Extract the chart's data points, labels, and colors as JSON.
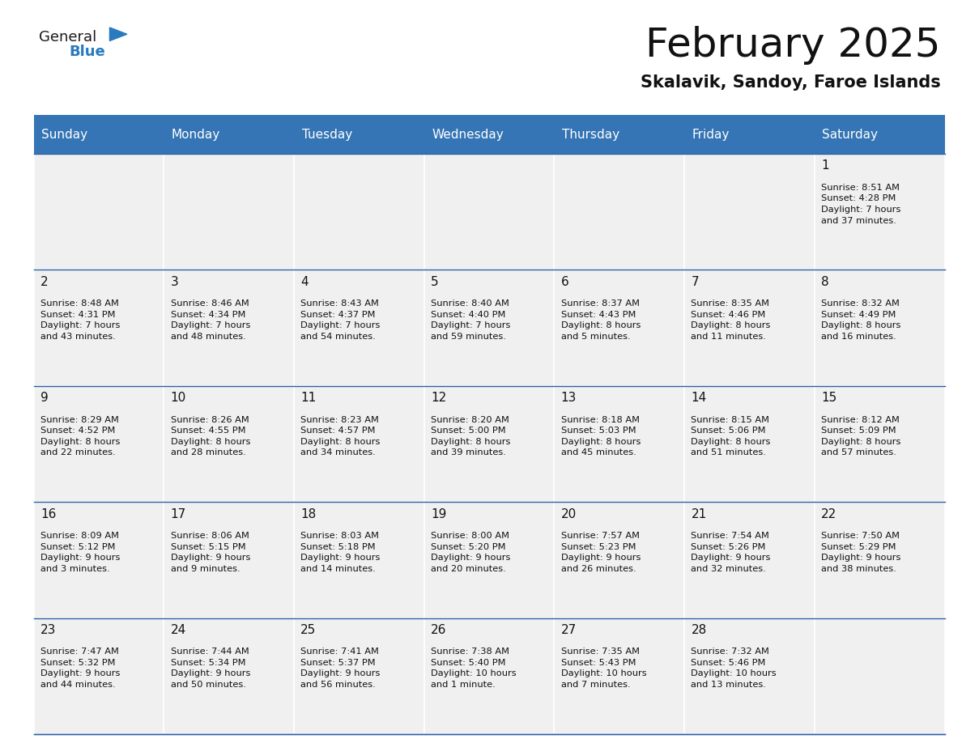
{
  "title": "February 2025",
  "subtitle": "Skalavik, Sandoy, Faroe Islands",
  "header_color": "#3575b5",
  "header_text_color": "#ffffff",
  "cell_bg_color": "#f0f0f0",
  "border_color": "#2a5fa5",
  "cell_border_color": "#ffffff",
  "days_of_week": [
    "Sunday",
    "Monday",
    "Tuesday",
    "Wednesday",
    "Thursday",
    "Friday",
    "Saturday"
  ],
  "title_fontsize": 36,
  "subtitle_fontsize": 15,
  "day_header_fontsize": 11,
  "day_num_fontsize": 11,
  "cell_text_fontsize": 8.2,
  "calendar": [
    [
      null,
      null,
      null,
      null,
      null,
      null,
      {
        "day": "1",
        "sunrise": "8:51 AM",
        "sunset": "4:28 PM",
        "daylight": "7 hours",
        "daylight2": "and 37 minutes."
      }
    ],
    [
      {
        "day": "2",
        "sunrise": "8:48 AM",
        "sunset": "4:31 PM",
        "daylight": "7 hours",
        "daylight2": "and 43 minutes."
      },
      {
        "day": "3",
        "sunrise": "8:46 AM",
        "sunset": "4:34 PM",
        "daylight": "7 hours",
        "daylight2": "and 48 minutes."
      },
      {
        "day": "4",
        "sunrise": "8:43 AM",
        "sunset": "4:37 PM",
        "daylight": "7 hours",
        "daylight2": "and 54 minutes."
      },
      {
        "day": "5",
        "sunrise": "8:40 AM",
        "sunset": "4:40 PM",
        "daylight": "7 hours",
        "daylight2": "and 59 minutes."
      },
      {
        "day": "6",
        "sunrise": "8:37 AM",
        "sunset": "4:43 PM",
        "daylight": "8 hours",
        "daylight2": "and 5 minutes."
      },
      {
        "day": "7",
        "sunrise": "8:35 AM",
        "sunset": "4:46 PM",
        "daylight": "8 hours",
        "daylight2": "and 11 minutes."
      },
      {
        "day": "8",
        "sunrise": "8:32 AM",
        "sunset": "4:49 PM",
        "daylight": "8 hours",
        "daylight2": "and 16 minutes."
      }
    ],
    [
      {
        "day": "9",
        "sunrise": "8:29 AM",
        "sunset": "4:52 PM",
        "daylight": "8 hours",
        "daylight2": "and 22 minutes."
      },
      {
        "day": "10",
        "sunrise": "8:26 AM",
        "sunset": "4:55 PM",
        "daylight": "8 hours",
        "daylight2": "and 28 minutes."
      },
      {
        "day": "11",
        "sunrise": "8:23 AM",
        "sunset": "4:57 PM",
        "daylight": "8 hours",
        "daylight2": "and 34 minutes."
      },
      {
        "day": "12",
        "sunrise": "8:20 AM",
        "sunset": "5:00 PM",
        "daylight": "8 hours",
        "daylight2": "and 39 minutes."
      },
      {
        "day": "13",
        "sunrise": "8:18 AM",
        "sunset": "5:03 PM",
        "daylight": "8 hours",
        "daylight2": "and 45 minutes."
      },
      {
        "day": "14",
        "sunrise": "8:15 AM",
        "sunset": "5:06 PM",
        "daylight": "8 hours",
        "daylight2": "and 51 minutes."
      },
      {
        "day": "15",
        "sunrise": "8:12 AM",
        "sunset": "5:09 PM",
        "daylight": "8 hours",
        "daylight2": "and 57 minutes."
      }
    ],
    [
      {
        "day": "16",
        "sunrise": "8:09 AM",
        "sunset": "5:12 PM",
        "daylight": "9 hours",
        "daylight2": "and 3 minutes."
      },
      {
        "day": "17",
        "sunrise": "8:06 AM",
        "sunset": "5:15 PM",
        "daylight": "9 hours",
        "daylight2": "and 9 minutes."
      },
      {
        "day": "18",
        "sunrise": "8:03 AM",
        "sunset": "5:18 PM",
        "daylight": "9 hours",
        "daylight2": "and 14 minutes."
      },
      {
        "day": "19",
        "sunrise": "8:00 AM",
        "sunset": "5:20 PM",
        "daylight": "9 hours",
        "daylight2": "and 20 minutes."
      },
      {
        "day": "20",
        "sunrise": "7:57 AM",
        "sunset": "5:23 PM",
        "daylight": "9 hours",
        "daylight2": "and 26 minutes."
      },
      {
        "day": "21",
        "sunrise": "7:54 AM",
        "sunset": "5:26 PM",
        "daylight": "9 hours",
        "daylight2": "and 32 minutes."
      },
      {
        "day": "22",
        "sunrise": "7:50 AM",
        "sunset": "5:29 PM",
        "daylight": "9 hours",
        "daylight2": "and 38 minutes."
      }
    ],
    [
      {
        "day": "23",
        "sunrise": "7:47 AM",
        "sunset": "5:32 PM",
        "daylight": "9 hours",
        "daylight2": "and 44 minutes."
      },
      {
        "day": "24",
        "sunrise": "7:44 AM",
        "sunset": "5:34 PM",
        "daylight": "9 hours",
        "daylight2": "and 50 minutes."
      },
      {
        "day": "25",
        "sunrise": "7:41 AM",
        "sunset": "5:37 PM",
        "daylight": "9 hours",
        "daylight2": "and 56 minutes."
      },
      {
        "day": "26",
        "sunrise": "7:38 AM",
        "sunset": "5:40 PM",
        "daylight": "10 hours",
        "daylight2": "and 1 minute."
      },
      {
        "day": "27",
        "sunrise": "7:35 AM",
        "sunset": "5:43 PM",
        "daylight": "10 hours",
        "daylight2": "and 7 minutes."
      },
      {
        "day": "28",
        "sunrise": "7:32 AM",
        "sunset": "5:46 PM",
        "daylight": "10 hours",
        "daylight2": "and 13 minutes."
      },
      null
    ]
  ],
  "logo_general_color": "#1a1a1a",
  "logo_blue_color": "#2a7abf",
  "logo_triangle_color": "#2a7abf"
}
